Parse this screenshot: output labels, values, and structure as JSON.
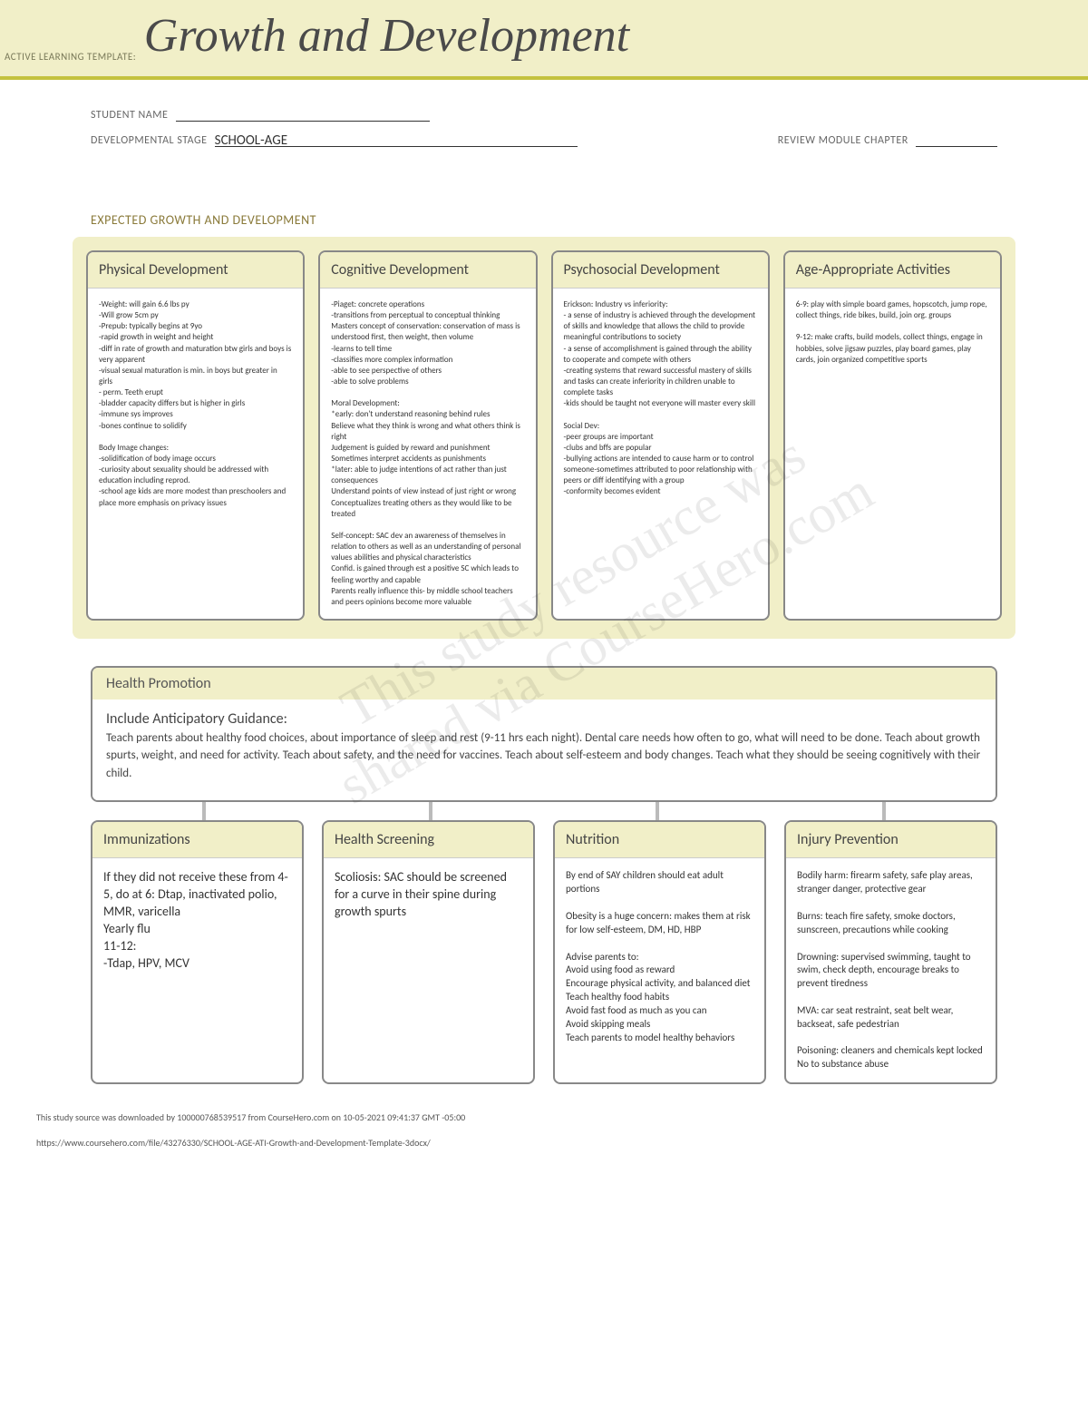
{
  "header": {
    "prefix": "ACTIVE LEARNING TEMPLATE:",
    "title": "Growth and Development"
  },
  "form": {
    "student_name_label": "STUDENT NAME",
    "student_name_value": "",
    "dev_stage_label": "DEVELOPMENTAL STAGE",
    "dev_stage_value": "SCHOOL-AGE",
    "review_label": "REVIEW MODULE CHAPTER",
    "review_value": ""
  },
  "section1_title": "EXPECTED GROWTH AND DEVELOPMENT",
  "top": {
    "physical": {
      "title": "Physical Development",
      "body": "-Weight: will gain 6.6 lbs py\n-Will grow 5cm py\n-Prepub: typically begins at 9yo\n-rapid growth in weight and height\n-diff in rate of growth and maturation btw girls and boys is very apparent\n-visual sexual maturation is min. in boys but greater in girls\n- perm. Teeth erupt\n-bladder capacity differs but is higher in girls\n-immune sys improves\n-bones continue to solidify\n\nBody Image changes:\n-solidification of body image occurs\n-curiosity about sexuality should be addressed with education including reprod.\n-school age kids are more modest than preschoolers and place more emphasis on privacy issues"
    },
    "cognitive": {
      "title": "Cognitive Development",
      "body": "-Piaget: concrete operations\n-transitions from perceptual to conceptual thinking\nMasters concept of conservation: conservation of mass is understood first, then weight, then volume\n-learns to tell time\n-classifies more complex information\n-able to see perspective of others\n-able to solve problems\n\nMoral Development:\n*early: don't understand reasoning behind rules\nBelieve what they think is wrong and what others think is right\nJudgement is guided by reward and punishment\nSometimes interpret accidents as punishments\n*later: able to judge intentions of act rather than just consequences\nUnderstand points of view instead of just right or wrong\nConceptualizes treating others as they would like to be treated\n\nSelf-concept: SAC dev an awareness of themselves in relation to others as well as an understanding of personal values abilities and physical characteristics\nConfid. is gained through est a positive SC which leads to feeling worthy and capable\nParents really influence this- by middle school teachers and peers opinions become more valuable"
    },
    "psychosocial": {
      "title": "Psychosocial Development",
      "body": "Erickson: Industry vs inferiority:\n- a sense of industry is achieved through the development of skills and knowledge that allows the child to provide meaningful contributions to society\n- a sense of accomplishment is gained through the ability to cooperate and compete with others\n-creating systems that reward successful mastery of skills and tasks can create inferiority in children unable to complete tasks\n-kids should be taught not everyone will master every skill\n\nSocial Dev:\n-peer groups are important\n-clubs and bffs are popular\n-bullying actions are intended to cause harm or to control someone-sometimes attributed to poor relationship with peers or diff identifying with a group\n-conformity becomes evident"
    },
    "activities": {
      "title": "Age-Appropriate Activities",
      "body": "6-9: play with simple board games, hopscotch, jump rope, collect things, ride bikes, build, join org. groups\n\n9-12: make crafts, build models, collect things, engage in hobbies, solve jigsaw puzzles, play board games, play cards, join organized competitive sports"
    }
  },
  "health": {
    "title": "Health Promotion",
    "sub": "Include Anticipatory Guidance:",
    "text": "Teach parents about healthy food choices, about importance of sleep and rest (9-11 hrs each night). Dental care needs how often to go, what will need to be done. Teach about growth spurts, weight, and need for activity. Teach about safety, and the need for vaccines. Teach about self-esteem and body changes. Teach what they should be seeing cognitively with their child."
  },
  "bottom": {
    "imm": {
      "title": "Immunizations",
      "body": "If they did not receive these from 4-5, do at 6: Dtap, inactivated polio, MMR, varicella\nYearly flu\n11-12:\n-Tdap, HPV, MCV"
    },
    "screen": {
      "title": "Health Screening",
      "body": "Scoliosis: SAC should be screened for a curve in their spine during growth spurts"
    },
    "nutrition": {
      "title": "Nutrition",
      "body": "By end of SAY children should eat adult portions\n\nObesity is a huge concern: makes them at risk for low self-esteem, DM, HD, HBP\n\nAdvise parents to:\nAvoid using food as reward\nEncourage physical activity, and balanced diet\nTeach healthy food habits\nAvoid fast food as much as you can\nAvoid skipping meals\nTeach parents to model healthy behaviors"
    },
    "injury": {
      "title": "Injury Prevention",
      "body": "Bodily harm: firearm safety, safe play areas, stranger danger, protective gear\n\nBurns: teach fire safety, smoke doctors, sunscreen, precautions while cooking\n\nDrowning: supervised swimming, taught to swim, check depth, encourage breaks to prevent tiredness\n\nMVA: car seat restraint, seat belt wear, backseat, safe pedestrian\n\nPoisoning: cleaners and chemicals kept locked\nNo to substance abuse"
    }
  },
  "watermark": "This study resource was\nshared via CourseHero.com",
  "footer1": "This study source was downloaded by 100000768539517 from CourseHero.com on 10-05-2021 09:41:37 GMT -05:00",
  "footer2": "https://www.coursehero.com/file/43276330/SCHOOL-AGE-ATI-Growth-and-Development-Template-3docx/"
}
